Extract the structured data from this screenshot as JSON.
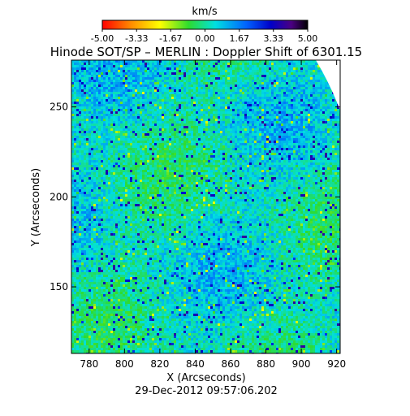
{
  "chart_data": {
    "type": "heatmap",
    "title": "Hinode SOT/SP – MERLIN : Doppler Shift of 6301.15",
    "xlabel": "X (Arcseconds)",
    "ylabel": "Y (Arcseconds)",
    "footer": "29-Dec-2012 09:57:06.202",
    "colorbar": {
      "label": "km/s",
      "min": -5.0,
      "max": 5.0,
      "ticks": [
        "-5.00",
        "-3.33",
        "-1.67",
        "0.00",
        "1.67",
        "3.33",
        "5.00"
      ],
      "colormap": [
        "#ff0000",
        "#ff8c00",
        "#ffff00",
        "#2edc2e",
        "#00e0e0",
        "#0064ff",
        "#0000c8",
        "#4b0082",
        "#000000"
      ]
    },
    "xlim": [
      770,
      922
    ],
    "ylim": [
      113,
      276
    ],
    "xticks": [
      "780",
      "800",
      "820",
      "840",
      "860",
      "880",
      "900",
      "920"
    ],
    "xtick_values": [
      780,
      800,
      820,
      840,
      860,
      880,
      900,
      920
    ],
    "yticks": [
      "150",
      "200",
      "250"
    ],
    "ytick_values": [
      150,
      200,
      250
    ],
    "grid": false
  }
}
